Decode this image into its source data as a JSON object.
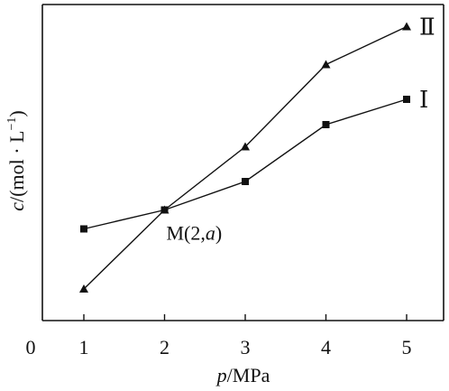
{
  "chart_data": {
    "type": "line",
    "x": [
      1,
      2,
      3,
      4,
      5
    ],
    "xlim": [
      0,
      5.5
    ],
    "x_ticks": [
      "0",
      "1",
      "2",
      "3",
      "4",
      "5"
    ],
    "ylim": [
      0,
      1
    ],
    "y_ticks_shown": false,
    "grid": false,
    "legend": "none (series labeled at line ends)",
    "xlabel": {
      "var": "p",
      "unit": "/MPa"
    },
    "ylabel": {
      "var": "c",
      "unit": "/(mol · L",
      "sup": "−1",
      "close": ")"
    },
    "series": [
      {
        "name": "Ⅰ",
        "marker": "square",
        "values": [
          0.29,
          0.35,
          0.44,
          0.62,
          0.7
        ]
      },
      {
        "name": "Ⅱ",
        "marker": "triangle",
        "values": [
          0.1,
          0.35,
          0.55,
          0.81,
          0.93
        ]
      }
    ],
    "annotations": [
      {
        "x": 2,
        "y": 0.35,
        "text": {
          "prefix": "M(2,",
          "var": "a",
          "suffix": ")"
        }
      }
    ]
  }
}
